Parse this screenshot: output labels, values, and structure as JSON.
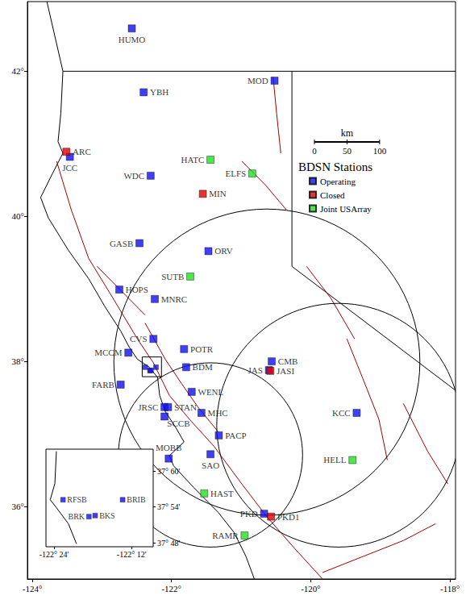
{
  "chart_data": {
    "type": "scatter",
    "xlim": [
      -124.07,
      -117.92
    ],
    "ylim": [
      35.0,
      42.96
    ],
    "xticks": [
      {
        "value": -124,
        "label": "-124°"
      },
      {
        "value": -122,
        "label": "-122°"
      },
      {
        "value": -120,
        "label": "-120°"
      },
      {
        "value": -118,
        "label": "-118°"
      }
    ],
    "yticks": [
      {
        "value": 36,
        "label": "36°"
      },
      {
        "value": 38,
        "label": "38°"
      },
      {
        "value": 40,
        "label": "40°"
      },
      {
        "value": 42,
        "label": "42°"
      }
    ],
    "grid": false,
    "legend": "right",
    "legend_title": "BDSN Stations",
    "series": [
      {
        "name": "Operating",
        "color": "#1010f0",
        "points": [
          {
            "label": "HUMO",
            "x": -122.57,
            "y": 42.59
          },
          {
            "label": "MOD",
            "x": -120.52,
            "y": 41.87
          },
          {
            "label": "YBH",
            "x": -122.4,
            "y": 41.71
          },
          {
            "label": "JCC",
            "x": -123.46,
            "y": 40.82
          },
          {
            "label": "WDC",
            "x": -122.3,
            "y": 40.56
          },
          {
            "label": "GASB",
            "x": -122.46,
            "y": 39.63
          },
          {
            "label": "ORV",
            "x": -121.47,
            "y": 39.52
          },
          {
            "label": "HOPS",
            "x": -122.75,
            "y": 38.99
          },
          {
            "label": "MNRC",
            "x": -122.24,
            "y": 38.86
          },
          {
            "label": "CVS",
            "x": -122.26,
            "y": 38.31
          },
          {
            "label": "MCCM",
            "x": -122.62,
            "y": 38.12
          },
          {
            "label": "POTR",
            "x": -121.82,
            "y": 38.17
          },
          {
            "label": "CMB",
            "x": -120.56,
            "y": 38.0
          },
          {
            "label": "JAS",
            "x": -120.6,
            "y": 37.88
          },
          {
            "label": "BDM",
            "x": -121.79,
            "y": 37.92
          },
          {
            "label": "FARB",
            "x": -122.73,
            "y": 37.68
          },
          {
            "label": "WENL",
            "x": -121.71,
            "y": 37.58
          },
          {
            "label": "JRSC",
            "x": -122.1,
            "y": 37.37
          },
          {
            "label": "STAN",
            "x": -122.05,
            "y": 37.37
          },
          {
            "label": "MHC",
            "x": -121.57,
            "y": 37.29
          },
          {
            "label": "SCCB",
            "x": -122.1,
            "y": 37.24
          },
          {
            "label": "PACP",
            "x": -121.32,
            "y": 36.98
          },
          {
            "label": "MOBB",
            "x": -122.04,
            "y": 36.66
          },
          {
            "label": "SAO",
            "x": -121.44,
            "y": 36.72
          },
          {
            "label": "KCC",
            "x": -119.34,
            "y": 37.29
          },
          {
            "label": "PKD",
            "x": -120.67,
            "y": 35.9
          }
        ]
      },
      {
        "name": "Closed",
        "color": "#e00000",
        "points": [
          {
            "label": "ARC",
            "x": -123.51,
            "y": 40.89
          },
          {
            "label": "MIN",
            "x": -121.55,
            "y": 40.31
          },
          {
            "label": "JASI",
            "x": -120.58,
            "y": 37.87
          },
          {
            "label": "PKD1",
            "x": -120.57,
            "y": 35.86
          }
        ]
      },
      {
        "name": "Joint USArray",
        "color": "#20e020",
        "points": [
          {
            "label": "HATC",
            "x": -121.44,
            "y": 40.78
          },
          {
            "label": "ELFS",
            "x": -120.84,
            "y": 40.59
          },
          {
            "label": "SUTB",
            "x": -121.73,
            "y": 39.17
          },
          {
            "label": "HELL",
            "x": -119.4,
            "y": 36.64
          },
          {
            "label": "HAST",
            "x": -121.53,
            "y": 36.18
          },
          {
            "label": "RAMR",
            "x": -120.95,
            "y": 35.6
          }
        ]
      }
    ],
    "circles": [
      {
        "center": [
          -120.63,
          37.99
        ],
        "radius": 2.11
      },
      {
        "center": [
          -119.6,
          37.12
        ],
        "radius": 1.68
      },
      {
        "center": [
          -121.44,
          36.71
        ],
        "radius": 1.27
      }
    ],
    "scale_bar": {
      "unit": "km",
      "ticks": [
        0,
        50,
        100
      ]
    },
    "coastline": [
      [
        -123.79,
        42.96
      ],
      [
        -123.56,
        42.0
      ],
      [
        -123.59,
        41.42
      ],
      [
        -123.63,
        41.03
      ],
      [
        -123.56,
        40.87
      ],
      [
        -123.71,
        40.59
      ],
      [
        -123.88,
        40.26
      ],
      [
        -123.77,
        39.98
      ],
      [
        -123.48,
        39.53
      ],
      [
        -123.19,
        39.14
      ],
      [
        -122.96,
        38.76
      ],
      [
        -122.73,
        38.42
      ],
      [
        -122.61,
        38.2
      ],
      [
        -122.49,
        38.03
      ],
      [
        -122.32,
        37.92
      ],
      [
        -122.2,
        37.78
      ],
      [
        -122.17,
        37.53
      ],
      [
        -122.09,
        37.31
      ],
      [
        -121.94,
        37.09
      ],
      [
        -121.82,
        36.89
      ],
      [
        -122.03,
        36.7
      ],
      [
        -121.97,
        36.56
      ],
      [
        -121.68,
        36.26
      ],
      [
        -121.33,
        35.92
      ],
      [
        -121.1,
        35.64
      ],
      [
        -120.93,
        35.31
      ],
      [
        -120.81,
        35.0
      ]
    ],
    "borders": [
      [
        [
          -123.56,
          42.0
        ],
        [
          -117.92,
          42.0
        ]
      ],
      [
        [
          -120.27,
          42.0
        ],
        [
          -120.27,
          39.31
        ],
        [
          -117.92,
          37.6
        ]
      ]
    ],
    "faults": {
      "color": "#a00000",
      "lines": [
        [
          [
            -123.65,
            40.76
          ],
          [
            -123.44,
            40.09
          ],
          [
            -123.19,
            39.42
          ],
          [
            -122.84,
            38.87
          ],
          [
            -122.49,
            38.31
          ],
          [
            -122.26,
            37.98
          ],
          [
            -122.03,
            37.53
          ],
          [
            -121.74,
            37.2
          ],
          [
            -121.39,
            36.83
          ],
          [
            -120.99,
            36.31
          ],
          [
            -120.64,
            35.87
          ],
          [
            -120.23,
            35.42
          ],
          [
            -119.83,
            35.0
          ]
        ],
        [
          [
            -122.38,
            38.53
          ],
          [
            -122.09,
            38.03
          ],
          [
            -121.86,
            37.7
          ],
          [
            -121.62,
            37.37
          ],
          [
            -121.33,
            37.03
          ]
        ],
        [
          [
            -123.07,
            39.31
          ],
          [
            -122.73,
            38.98
          ],
          [
            -122.38,
            38.64
          ]
        ],
        [
          [
            -120.54,
            41.92
          ],
          [
            -120.49,
            41.42
          ],
          [
            -120.43,
            40.87
          ]
        ],
        [
          [
            -120.99,
            40.76
          ],
          [
            -120.64,
            40.42
          ],
          [
            -120.35,
            40.09
          ]
        ],
        [
          [
            -119.48,
            38.31
          ],
          [
            -119.25,
            37.76
          ],
          [
            -119.02,
            37.2
          ],
          [
            -118.9,
            36.64
          ]
        ],
        [
          [
            -119.83,
            35.09
          ],
          [
            -119.25,
            35.31
          ],
          [
            -118.67,
            35.53
          ],
          [
            -118.21,
            35.76
          ]
        ],
        [
          [
            -120.06,
            39.31
          ],
          [
            -119.71,
            38.87
          ],
          [
            -119.37,
            38.31
          ]
        ],
        [
          [
            -118.67,
            37.42
          ],
          [
            -118.32,
            36.76
          ],
          [
            -118.03,
            36.31
          ]
        ]
      ]
    },
    "inset": {
      "xlim": [
        -122.421,
        -122.144
      ],
      "ylim": [
        37.789,
        38.061
      ],
      "xticks": [
        {
          "value": -122.4,
          "label": "-122° 24'"
        },
        {
          "value": -122.2,
          "label": "-122° 12'"
        }
      ],
      "yticks": [
        {
          "value": 38.0,
          "label": "37° 60'"
        },
        {
          "value": 37.9,
          "label": "37° 54'"
        },
        {
          "value": 37.8,
          "label": "37° 48'"
        }
      ],
      "coastline": [
        [
          -122.394,
          38.055
        ],
        [
          -122.398,
          37.965
        ],
        [
          -122.41,
          37.92
        ],
        [
          -122.394,
          37.898
        ],
        [
          -122.363,
          37.853
        ],
        [
          -122.342,
          37.797
        ]
      ],
      "series": [
        {
          "name": "Operating",
          "color": "#1010f0",
          "points": [
            {
              "label": "RFSB",
              "x": -122.377,
              "y": 37.92
            },
            {
              "label": "BRIB",
              "x": -122.223,
              "y": 37.92
            },
            {
              "label": "BRK",
              "x": -122.31,
              "y": 37.873
            },
            {
              "label": "BKS",
              "x": -122.294,
              "y": 37.876
            }
          ]
        }
      ]
    }
  }
}
